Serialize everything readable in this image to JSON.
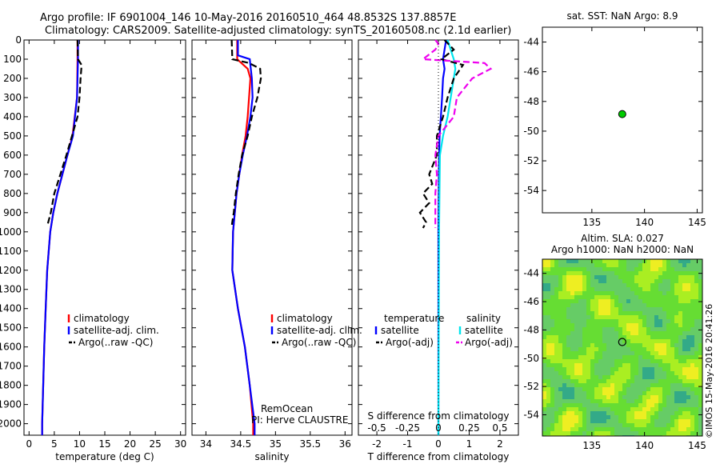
{
  "header": {
    "line1": "Argo profile: IF 6901004_146 10-May-2016 20160510_464 48.8532S 137.8857E",
    "line2": "Climatology: CARS2009. Satellite-adjusted climatology: synTS_20160508.nc (2.1d earlier)"
  },
  "side_text": "©IMOS 15-May-2016 20:41:26",
  "chart_data": [
    {
      "id": "temperature",
      "type": "line",
      "xlabel": "temperature (deg C)",
      "xlim": [
        -1,
        31
      ],
      "ylim": [
        2060,
        0
      ],
      "xticks": [
        "0",
        "5",
        "10",
        "15",
        "20",
        "25",
        "30"
      ],
      "xtick_values": [
        0,
        5,
        10,
        15,
        20,
        25,
        30
      ],
      "yticks": [
        "0",
        "100",
        "200",
        "300",
        "400",
        "500",
        "600",
        "700",
        "800",
        "900",
        "1000",
        "1100",
        "1200",
        "1300",
        "1400",
        "1500",
        "1600",
        "1700",
        "1800",
        "1900",
        "2000"
      ],
      "legend": [
        "climatology",
        "satellite-adj. clim.",
        "Argo(..raw -QC)"
      ],
      "series": [
        {
          "name": "climatology",
          "color": "#ff0000",
          "dash": "",
          "depth": [
            0,
            100,
            300,
            500,
            600,
            700,
            800,
            900,
            1000,
            1200,
            1400,
            1600,
            1800,
            2000,
            2060
          ],
          "values": [
            9.6,
            9.6,
            9.5,
            8.6,
            7.6,
            6.6,
            5.6,
            4.8,
            4.2,
            3.6,
            3.3,
            3.0,
            2.8,
            2.6,
            2.6
          ]
        },
        {
          "name": "satellite-adj. clim.",
          "color": "#0000ff",
          "dash": "",
          "depth": [
            0,
            100,
            300,
            500,
            600,
            700,
            800,
            900,
            1000,
            1200,
            1400,
            1600,
            1800,
            2000,
            2060
          ],
          "values": [
            9.7,
            9.7,
            9.5,
            8.7,
            7.6,
            6.6,
            5.6,
            4.8,
            4.2,
            3.6,
            3.3,
            3.0,
            2.8,
            2.6,
            2.6
          ]
        },
        {
          "name": "Argo(..raw -QC)",
          "color": "#000000",
          "dash": "8,4",
          "depth": [
            0,
            100,
            130,
            200,
            300,
            400,
            500,
            600,
            700,
            800,
            900,
            960
          ],
          "values": [
            9.6,
            9.7,
            10.4,
            10.2,
            10.0,
            9.6,
            8.5,
            7.4,
            6.2,
            5.0,
            4.3,
            3.7
          ]
        }
      ]
    },
    {
      "id": "salinity",
      "type": "line",
      "xlabel": "salinity",
      "xlim": [
        33.8,
        36.1
      ],
      "ylim": [
        2060,
        0
      ],
      "xticks": [
        "34",
        "34.5",
        "35",
        "35.5",
        "36"
      ],
      "xtick_values": [
        34,
        34.5,
        35,
        35.5,
        36
      ],
      "legend": [
        "climatology",
        "satellite-adj. clim.",
        "Argo(..raw -QC)"
      ],
      "annotation": [
        "RemOcean",
        "PI: Herve CLAUSTRE"
      ],
      "series": [
        {
          "name": "climatology",
          "color": "#ff0000",
          "dash": "",
          "depth": [
            0,
            100,
            150,
            200,
            300,
            400,
            500,
            600,
            700,
            800,
            1000,
            1200,
            1400,
            1600,
            1800,
            2000,
            2060
          ],
          "values": [
            34.45,
            34.45,
            34.6,
            34.64,
            34.62,
            34.6,
            34.57,
            34.52,
            34.48,
            34.44,
            34.39,
            34.38,
            34.46,
            34.56,
            34.63,
            34.68,
            34.68
          ]
        },
        {
          "name": "satellite-adj. clim.",
          "color": "#0000ff",
          "dash": "",
          "depth": [
            0,
            80,
            100,
            200,
            300,
            400,
            500,
            600,
            700,
            800,
            1000,
            1200,
            1400,
            1600,
            1800,
            2000,
            2060
          ],
          "values": [
            34.46,
            34.46,
            34.63,
            34.66,
            34.67,
            34.64,
            34.59,
            34.53,
            34.48,
            34.44,
            34.39,
            34.38,
            34.46,
            34.56,
            34.63,
            34.7,
            34.7
          ]
        },
        {
          "name": "Argo(..raw -QC)",
          "color": "#000000",
          "dash": "8,4",
          "depth": [
            0,
            100,
            120,
            150,
            200,
            300,
            400,
            500,
            600,
            700,
            800,
            900,
            970
          ],
          "values": [
            34.37,
            34.38,
            34.62,
            34.78,
            34.79,
            34.74,
            34.66,
            34.6,
            34.52,
            34.47,
            34.43,
            34.4,
            34.37
          ]
        }
      ]
    },
    {
      "id": "difference",
      "type": "line",
      "xlabel": "T difference from climatology",
      "xlabel_top": "S difference from climatology",
      "xlim": [
        -2.6,
        2.6
      ],
      "ylim": [
        2060,
        0
      ],
      "xticks": [
        "-2",
        "-1",
        "0",
        "1",
        "2"
      ],
      "xtick_values": [
        -2,
        -1,
        0,
        1,
        2
      ],
      "xticks_top": [
        "-0.5",
        "-0.25",
        "0",
        "0.25",
        "0.5"
      ],
      "legend_left": [
        "temperature",
        "satellite",
        "Argo(-adj)"
      ],
      "legend_right": [
        "salinity",
        "satellite",
        "Argo(-adj)"
      ],
      "series": [
        {
          "name": "satellite",
          "color": "#0000ff",
          "dash": "",
          "depth": [
            0,
            100,
            150,
            200,
            300,
            400,
            500,
            600,
            1000,
            2060
          ],
          "values": [
            0.25,
            0.15,
            0.2,
            0.15,
            0.12,
            0.08,
            0.04,
            0.02,
            0.0,
            0.0
          ]
        },
        {
          "name": "satellite",
          "color": "#00e5ee",
          "dash": "",
          "depth": [
            0,
            100,
            150,
            200,
            300,
            400,
            500,
            600,
            1000,
            2060
          ],
          "values": [
            0.3,
            0.5,
            0.55,
            0.5,
            0.4,
            0.3,
            0.15,
            0.05,
            0.02,
            0.0
          ]
        },
        {
          "name": "Argo(-adj)",
          "color": "#000000",
          "dash": "8,4",
          "depth": [
            0,
            50,
            100,
            130,
            200,
            300,
            400,
            500,
            600,
            700,
            750,
            800,
            850,
            900,
            950,
            980
          ],
          "values": [
            0.2,
            0.5,
            0.1,
            0.8,
            0.5,
            0.3,
            0.15,
            -0.05,
            -0.05,
            -0.3,
            -0.2,
            -0.5,
            -0.3,
            -0.6,
            -0.4,
            -0.5
          ]
        },
        {
          "name": "Argo(-adj)",
          "color": "#ee00ee",
          "dash": "8,4",
          "depth": [
            0,
            20,
            50,
            100,
            120,
            150,
            200,
            300,
            400,
            500,
            600,
            700,
            800,
            900,
            980
          ],
          "values": [
            -0.1,
            0.0,
            -0.1,
            -0.5,
            1.5,
            1.7,
            1.1,
            0.6,
            0.5,
            0.0,
            -0.1,
            -0.05,
            -0.1,
            -0.1,
            -0.1
          ]
        }
      ]
    },
    {
      "id": "sst_map",
      "type": "scatter",
      "title": "sat. SST: NaN Argo: 8.9",
      "xlim": [
        130.3,
        145.5
      ],
      "ylim": [
        -55.5,
        -43.0
      ],
      "xticks": [
        "135",
        "140",
        "145"
      ],
      "xtick_values": [
        135,
        140,
        145
      ],
      "yticks": [
        "-44",
        "-46",
        "-48",
        "-50",
        "-52",
        "-54"
      ],
      "ytick_values": [
        -44,
        -46,
        -48,
        -50,
        -52,
        -54
      ],
      "point": {
        "lon": 137.8857,
        "lat": -48.8532,
        "color": "#00cc00"
      }
    },
    {
      "id": "sla_map",
      "type": "heatmap",
      "title_line1": "Altim. SLA: 0.027",
      "title_line2": "Argo h1000: NaN h2000: NaN",
      "xlim": [
        130.3,
        145.5
      ],
      "ylim": [
        -55.5,
        -43.0
      ],
      "xticks": [
        "135",
        "140",
        "145"
      ],
      "xtick_values": [
        135,
        140,
        145
      ],
      "yticks": [
        "-44",
        "-46",
        "-48",
        "-50",
        "-52",
        "-54"
      ],
      "ytick_values": [
        -44,
        -46,
        -48,
        -50,
        -52,
        -54
      ],
      "point": {
        "lon": 137.8857,
        "lat": -48.8532
      },
      "colors": [
        "#33aa88",
        "#66cc66",
        "#66dd33",
        "#aaee22",
        "#eeee22"
      ]
    }
  ]
}
